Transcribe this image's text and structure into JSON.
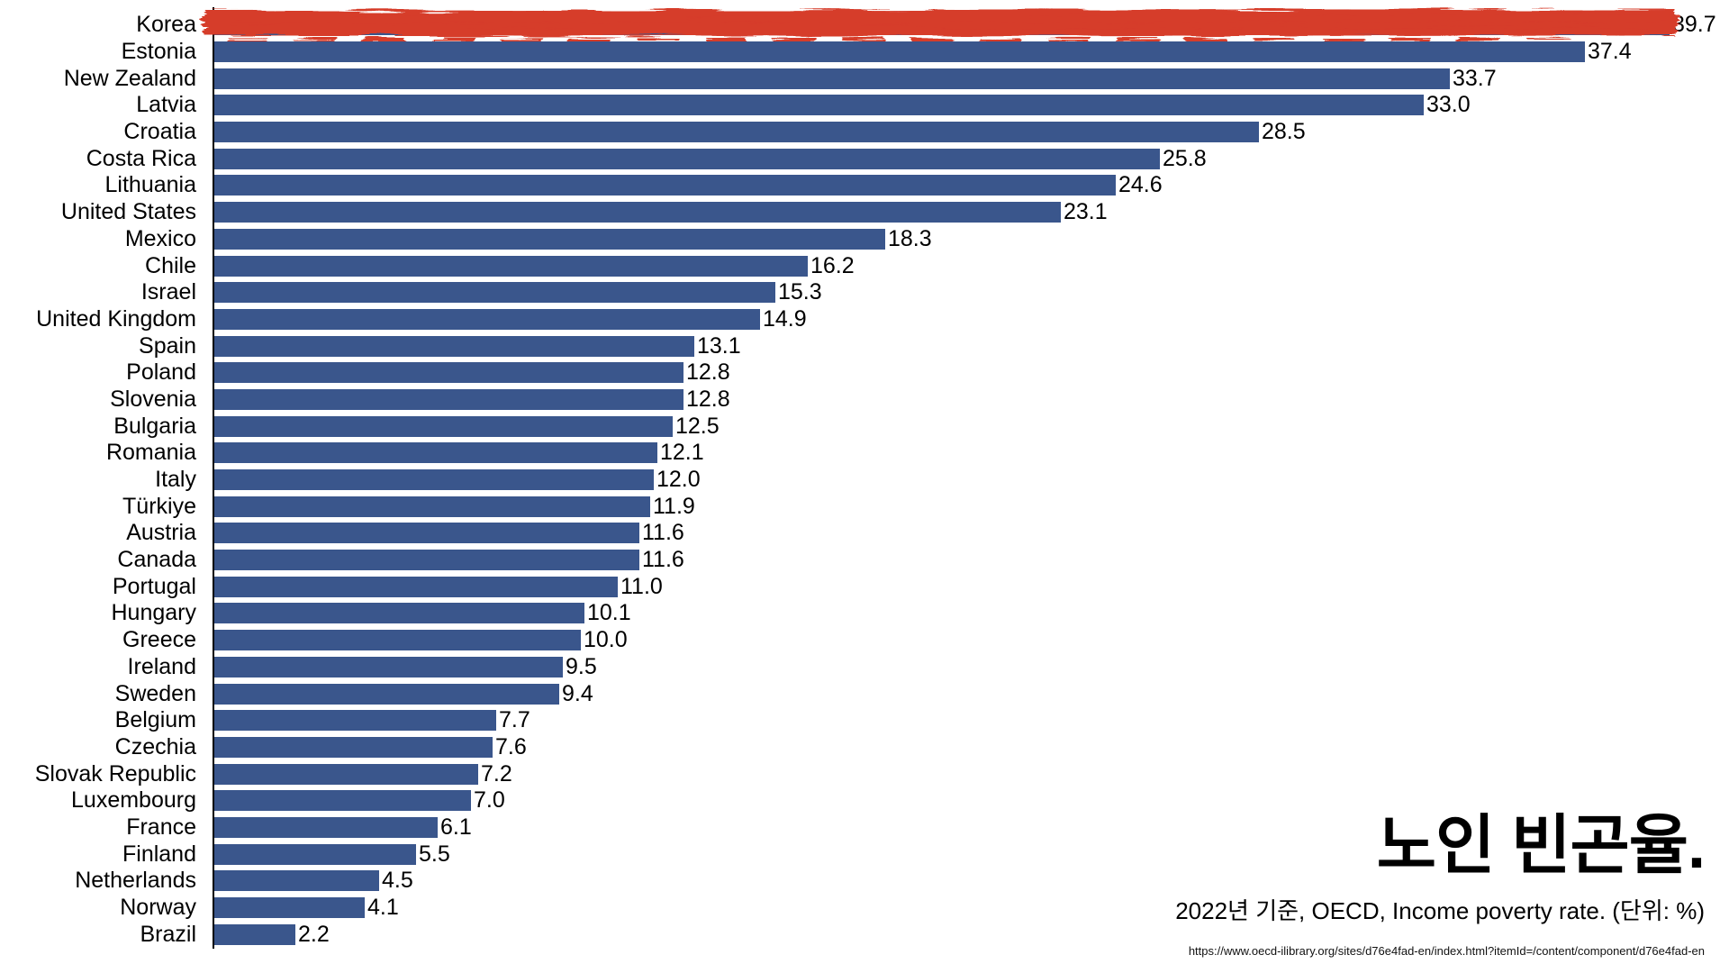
{
  "chart_data": {
    "type": "bar",
    "orientation": "horizontal",
    "title": "노인 빈곤율.",
    "subtitle": "2022년 기준, OECD, Income poverty rate. (단위: %)",
    "source_url": "https://www.oecd-ilibrary.org/sites/d76e4fad-en/index.html?itemId=/content/component/d76e4fad-en",
    "unit": "%",
    "categories": [
      "Korea",
      "Estonia",
      "New Zealand",
      "Latvia",
      "Croatia",
      "Costa Rica",
      "Lithuania",
      "United States",
      "Mexico",
      "Chile",
      "Israel",
      "United Kingdom",
      "Spain",
      "Poland",
      "Slovenia",
      "Bulgaria",
      "Romania",
      "Italy",
      "Türkiye",
      "Austria",
      "Canada",
      "Portugal",
      "Hungary",
      "Greece",
      "Ireland",
      "Sweden",
      "Belgium",
      "Czechia",
      "Slovak Republic",
      "Luxembourg",
      "France",
      "Finland",
      "Netherlands",
      "Norway",
      "Brazil"
    ],
    "values": [
      39.7,
      37.4,
      33.7,
      33.0,
      28.5,
      25.8,
      24.6,
      23.1,
      18.3,
      16.2,
      15.3,
      14.9,
      13.1,
      12.8,
      12.8,
      12.5,
      12.1,
      12.0,
      11.9,
      11.6,
      11.6,
      11.0,
      10.1,
      10.0,
      9.5,
      9.4,
      7.7,
      7.6,
      7.2,
      7.0,
      6.1,
      5.5,
      4.5,
      4.1,
      2.2
    ],
    "value_labels": [
      "39.7",
      "37.4",
      "33.7",
      "33.0",
      "28.5",
      "25.8",
      "24.6",
      "23.1",
      "18.3",
      "16.2",
      "15.3",
      "14.9",
      "13.1",
      "12.8",
      "12.8",
      "12.5",
      "12.1",
      "12.0",
      "11.9",
      "11.6",
      "11.6",
      "11.0",
      "10.1",
      "10.0",
      "9.5",
      "9.4",
      "7.7",
      "7.6",
      "7.2",
      "7.0",
      "6.1",
      "5.5",
      "4.5",
      "4.1",
      "2.2"
    ],
    "highlighted_category": "Korea",
    "highlight_style": "red-scribble",
    "bar_color": "#3A568C",
    "highlight_scribble_color": "#D63C2B",
    "label_color": "#000000",
    "xlim": [
      0,
      41
    ],
    "grid": false,
    "legend": false
  }
}
